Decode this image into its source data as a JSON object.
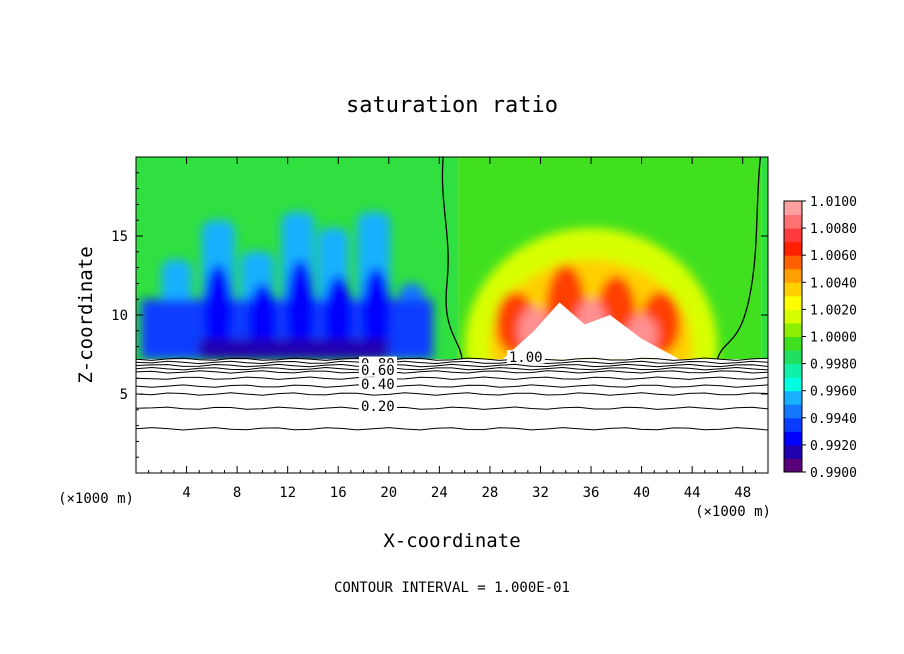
{
  "chart_data": {
    "type": "heatmap",
    "title": "saturation ratio",
    "xlabel": "X-coordinate",
    "ylabel": "Z-coordinate",
    "x_unit": "(×1000 m)",
    "xlim": [
      0,
      50
    ],
    "ylim": [
      0,
      20
    ],
    "x_ticks": [
      "4",
      "8",
      "12",
      "16",
      "20",
      "24",
      "28",
      "32",
      "36",
      "40",
      "44",
      "48"
    ],
    "y_ticks": [
      "5",
      "10",
      "15"
    ],
    "footer": "CONTOUR INTERVAL = 1.000E-01",
    "colorbar": {
      "labels": [
        "1.0100",
        "1.0080",
        "1.0060",
        "1.0040",
        "1.0020",
        "1.0000",
        "0.9980",
        "0.9960",
        "0.9940",
        "0.9920",
        "0.9900"
      ],
      "min": 0.99,
      "max": 1.01,
      "colors": [
        "#5a007a",
        "#2200b0",
        "#0000ff",
        "#0a3cff",
        "#1478ff",
        "#18b0ff",
        "#00ffe0",
        "#10f0a8",
        "#20e060",
        "#40e020",
        "#8cf000",
        "#d8ff00",
        "#ffff00",
        "#ffd000",
        "#ffa000",
        "#ff6000",
        "#ff2000",
        "#ff3a3a",
        "#ff7070",
        "#ffa0a0"
      ]
    },
    "contour_labels": [
      {
        "text": "1.00",
        "x": 29.5,
        "z": 7.2
      },
      {
        "text": "0.80",
        "x": 17.8,
        "z": 6.8
      },
      {
        "text": "0.60",
        "x": 17.8,
        "z": 6.4
      },
      {
        "text": "0.40",
        "x": 17.8,
        "z": 5.5
      },
      {
        "text": "0.20",
        "x": 17.8,
        "z": 4.1
      }
    ],
    "contours": [
      {
        "level": 1.0,
        "z": 7.2
      },
      {
        "level": 0.9,
        "z": 7.0
      },
      {
        "level": 0.8,
        "z": 6.8
      },
      {
        "level": 0.7,
        "z": 6.6
      },
      {
        "level": 0.6,
        "z": 6.4
      },
      {
        "level": 0.5,
        "z": 6.0
      },
      {
        "level": 0.4,
        "z": 5.5
      },
      {
        "level": 0.3,
        "z": 5.0
      },
      {
        "level": 0.2,
        "z": 4.1
      },
      {
        "level": 0.1,
        "z": 2.8
      }
    ],
    "cloud_base_z": 7.2,
    "supersaturated_region_x": [
      25.5,
      49.5
    ]
  }
}
